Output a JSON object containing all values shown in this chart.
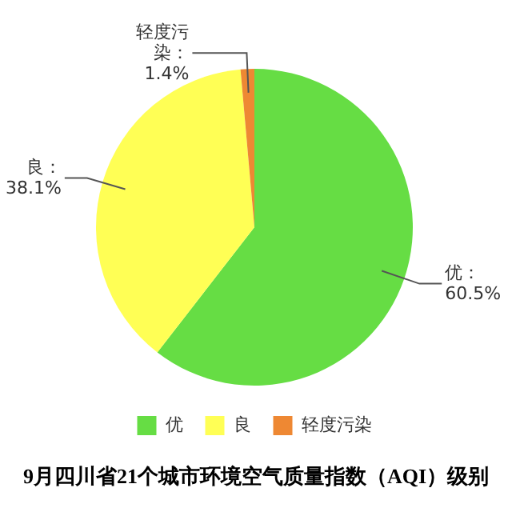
{
  "chart_data": {
    "type": "pie",
    "title": "9月四川省21个城市环境空气质量指数（AQI）级别",
    "categories": [
      "优",
      "良",
      "轻度污染"
    ],
    "values": [
      60.5,
      38.1,
      1.4
    ],
    "colors": [
      "#66dd44",
      "#ffff55",
      "#ee8833"
    ],
    "value_labels": [
      "优：60.5%",
      "良：38.1%",
      "轻度污染：1.4%"
    ],
    "legend": "bottom"
  }
}
